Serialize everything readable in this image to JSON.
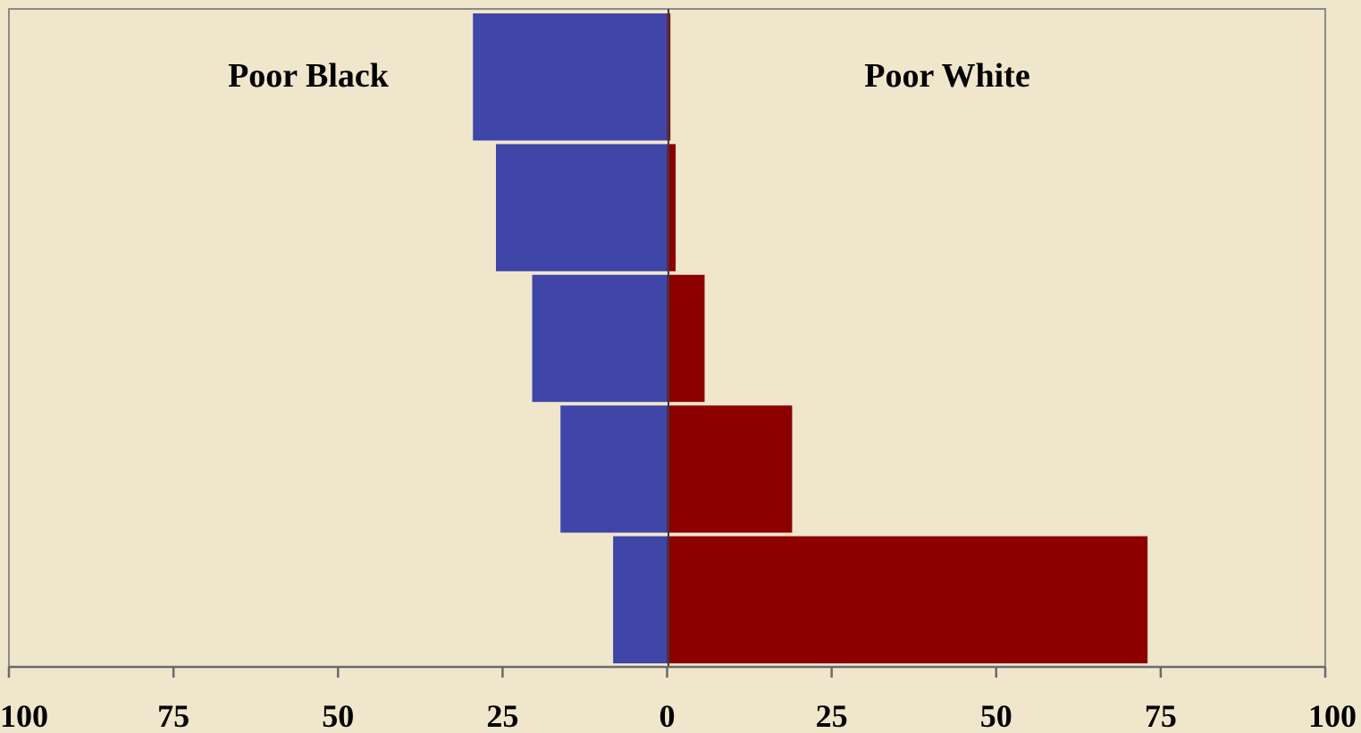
{
  "chart_data": {
    "type": "bar",
    "orientation": "horizontal",
    "layout": "back-to-back",
    "title": "",
    "xlabel": "",
    "ylabel": "",
    "xlim": [
      -100,
      100
    ],
    "categories": [
      "",
      "",
      "",
      "",
      ""
    ],
    "series": [
      {
        "name": "Poor Black",
        "side": "left",
        "color": "#4045a8",
        "values": [
          29.5,
          26,
          20.5,
          16.2,
          8.2
        ]
      },
      {
        "name": "Poor White",
        "side": "right",
        "color": "#8c0000",
        "values": [
          0.5,
          1.3,
          5.7,
          19,
          73
        ]
      }
    ],
    "x_ticks": [
      -100,
      -75,
      -50,
      -25,
      0,
      25,
      50,
      75,
      100
    ],
    "x_tick_labels": [
      "100",
      "75",
      "50",
      "25",
      "0",
      "25",
      "50",
      "75",
      "100"
    ],
    "grid": false,
    "legend": "none",
    "background_color": "#f0e6cc",
    "axis_color": "#7a7a7a"
  }
}
